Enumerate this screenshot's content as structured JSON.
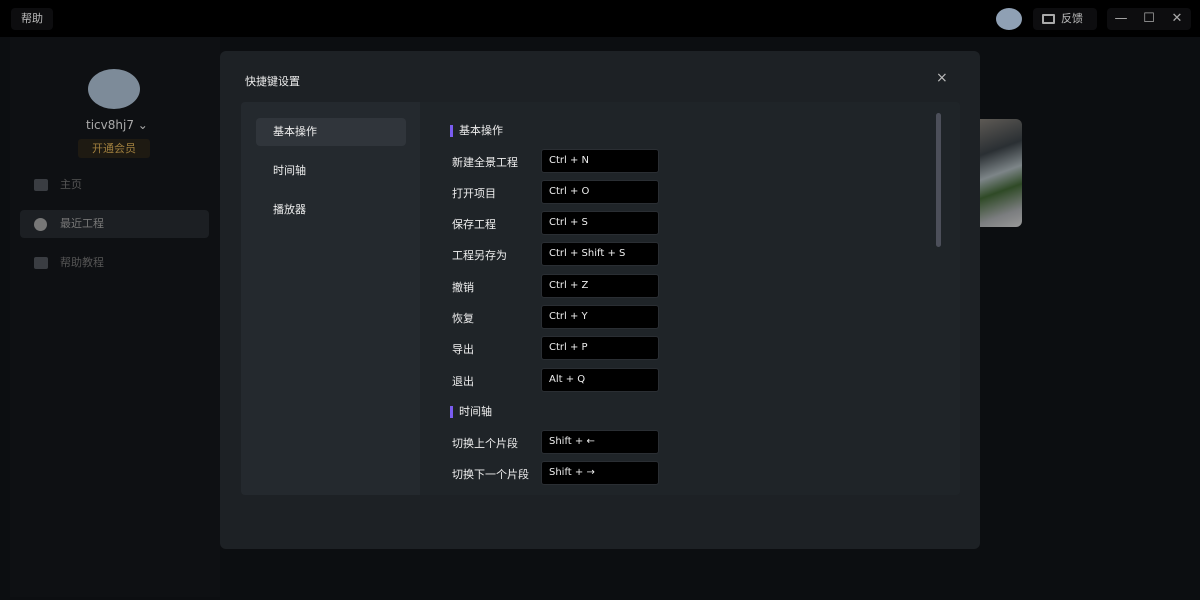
{
  "topbar": {
    "help_label": "帮助",
    "feedback_label": "反馈",
    "window_controls": [
      "—",
      "☐",
      "✕"
    ]
  },
  "sidebar": {
    "username": "ticv8hj7",
    "vip_label": "开通会员",
    "items": [
      {
        "label": "主页",
        "icon": "home-icon"
      },
      {
        "label": "最近工程",
        "icon": "clock-icon",
        "active": true
      },
      {
        "label": "帮助教程",
        "icon": "graduation-cap-icon"
      }
    ]
  },
  "modal": {
    "title": "快捷键设置",
    "close": "×",
    "categories": [
      {
        "label": "基本操作",
        "active": true
      },
      {
        "label": "时间轴"
      },
      {
        "label": "播放器"
      }
    ],
    "sections": [
      {
        "title": "基本操作",
        "shortcuts": [
          {
            "label": "新建全景工程",
            "key": "Ctrl + N"
          },
          {
            "label": "打开项目",
            "key": "Ctrl + O"
          },
          {
            "label": "保存工程",
            "key": "Ctrl + S"
          },
          {
            "label": "工程另存为",
            "key": "Ctrl + Shift + S"
          },
          {
            "label": "撤销",
            "key": "Ctrl + Z"
          },
          {
            "label": "恢复",
            "key": "Ctrl + Y"
          },
          {
            "label": "导出",
            "key": "Ctrl + P"
          },
          {
            "label": "退出",
            "key": "Alt + Q"
          }
        ]
      },
      {
        "title": "时间轴",
        "shortcuts": [
          {
            "label": "切换上个片段",
            "key": "Shift + ←"
          },
          {
            "label": "切换下一个片段",
            "key": "Shift + →"
          }
        ]
      }
    ]
  },
  "colors": {
    "accent": "#7a5cf0",
    "vip": "#a07f3e"
  }
}
